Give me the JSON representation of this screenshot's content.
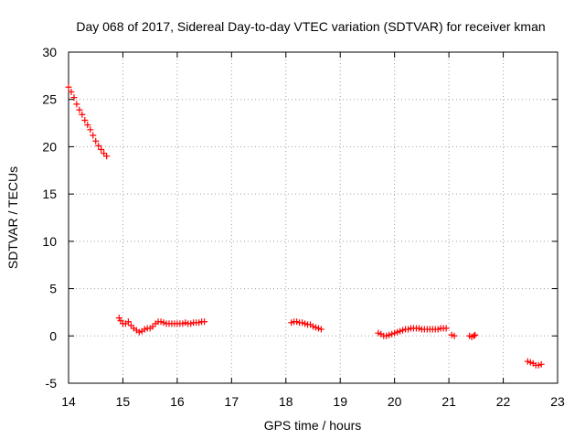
{
  "chart_data": {
    "type": "scatter",
    "title": "Day 068 of 2017, Sidereal Day-to-day VTEC variation (SDTVAR) for receiver kman",
    "xlabel": "GPS time / hours",
    "ylabel": "SDTVAR / TECUs",
    "xlim": [
      14,
      23
    ],
    "ylim": [
      -5,
      30
    ],
    "xticks": [
      14,
      15,
      16,
      17,
      18,
      19,
      20,
      21,
      22,
      23
    ],
    "yticks": [
      -5,
      0,
      5,
      10,
      15,
      20,
      25,
      30
    ],
    "grid": true,
    "marker": "+",
    "color": "#ff0000",
    "segments": [
      {
        "name": "arc-1",
        "points": [
          [
            14.0,
            26.3
          ],
          [
            14.05,
            25.8
          ],
          [
            14.1,
            25.2
          ],
          [
            14.15,
            24.5
          ],
          [
            14.2,
            23.9
          ],
          [
            14.25,
            23.4
          ],
          [
            14.3,
            22.8
          ],
          [
            14.35,
            22.3
          ],
          [
            14.4,
            21.8
          ],
          [
            14.45,
            21.2
          ],
          [
            14.5,
            20.6
          ],
          [
            14.55,
            20.1
          ],
          [
            14.6,
            19.7
          ],
          [
            14.65,
            19.3
          ],
          [
            14.7,
            19.0
          ]
        ]
      },
      {
        "name": "arc-2",
        "points": [
          [
            14.93,
            1.9
          ],
          [
            14.96,
            1.6
          ],
          [
            15.0,
            1.3
          ],
          [
            15.05,
            1.3
          ],
          [
            15.1,
            1.5
          ],
          [
            15.15,
            1.1
          ],
          [
            15.2,
            0.8
          ],
          [
            15.25,
            0.6
          ],
          [
            15.3,
            0.4
          ],
          [
            15.35,
            0.5
          ],
          [
            15.4,
            0.7
          ],
          [
            15.45,
            0.8
          ],
          [
            15.5,
            0.8
          ],
          [
            15.55,
            1.0
          ],
          [
            15.6,
            1.3
          ],
          [
            15.65,
            1.5
          ],
          [
            15.7,
            1.5
          ],
          [
            15.75,
            1.4
          ],
          [
            15.8,
            1.3
          ],
          [
            15.85,
            1.3
          ],
          [
            15.9,
            1.3
          ],
          [
            15.95,
            1.3
          ],
          [
            16.0,
            1.3
          ],
          [
            16.05,
            1.3
          ],
          [
            16.1,
            1.3
          ],
          [
            16.15,
            1.4
          ],
          [
            16.2,
            1.3
          ],
          [
            16.25,
            1.3
          ],
          [
            16.3,
            1.4
          ],
          [
            16.35,
            1.4
          ],
          [
            16.4,
            1.4
          ],
          [
            16.45,
            1.5
          ],
          [
            16.5,
            1.5
          ]
        ]
      },
      {
        "name": "arc-3",
        "points": [
          [
            18.1,
            1.4
          ],
          [
            18.15,
            1.5
          ],
          [
            18.2,
            1.5
          ],
          [
            18.25,
            1.4
          ],
          [
            18.3,
            1.4
          ],
          [
            18.35,
            1.3
          ],
          [
            18.4,
            1.2
          ],
          [
            18.45,
            1.2
          ],
          [
            18.5,
            1.0
          ],
          [
            18.55,
            0.9
          ],
          [
            18.6,
            0.8
          ],
          [
            18.65,
            0.7
          ]
        ]
      },
      {
        "name": "arc-4",
        "points": [
          [
            19.7,
            0.3
          ],
          [
            19.75,
            0.2
          ],
          [
            19.8,
            0.0
          ],
          [
            19.85,
            0.0
          ],
          [
            19.9,
            0.1
          ],
          [
            19.95,
            0.2
          ],
          [
            20.0,
            0.3
          ],
          [
            20.05,
            0.4
          ],
          [
            20.1,
            0.5
          ],
          [
            20.15,
            0.6
          ],
          [
            20.2,
            0.7
          ],
          [
            20.25,
            0.7
          ],
          [
            20.3,
            0.8
          ],
          [
            20.35,
            0.8
          ],
          [
            20.4,
            0.8
          ],
          [
            20.45,
            0.8
          ],
          [
            20.5,
            0.7
          ],
          [
            20.55,
            0.7
          ],
          [
            20.6,
            0.7
          ],
          [
            20.65,
            0.7
          ],
          [
            20.7,
            0.7
          ],
          [
            20.75,
            0.7
          ],
          [
            20.8,
            0.7
          ],
          [
            20.85,
            0.8
          ],
          [
            20.9,
            0.8
          ],
          [
            20.95,
            0.8
          ]
        ]
      },
      {
        "name": "arc-5",
        "points": [
          [
            21.05,
            0.1
          ],
          [
            21.1,
            0.0
          ]
        ]
      },
      {
        "name": "arc-6",
        "points": [
          [
            21.38,
            0.0
          ],
          [
            21.42,
            -0.1
          ],
          [
            21.46,
            0.0
          ],
          [
            21.48,
            0.1
          ]
        ]
      },
      {
        "name": "arc-7",
        "points": [
          [
            22.45,
            -2.7
          ],
          [
            22.5,
            -2.8
          ],
          [
            22.55,
            -2.9
          ],
          [
            22.6,
            -3.1
          ],
          [
            22.65,
            -3.1
          ],
          [
            22.7,
            -3.0
          ]
        ]
      }
    ]
  }
}
